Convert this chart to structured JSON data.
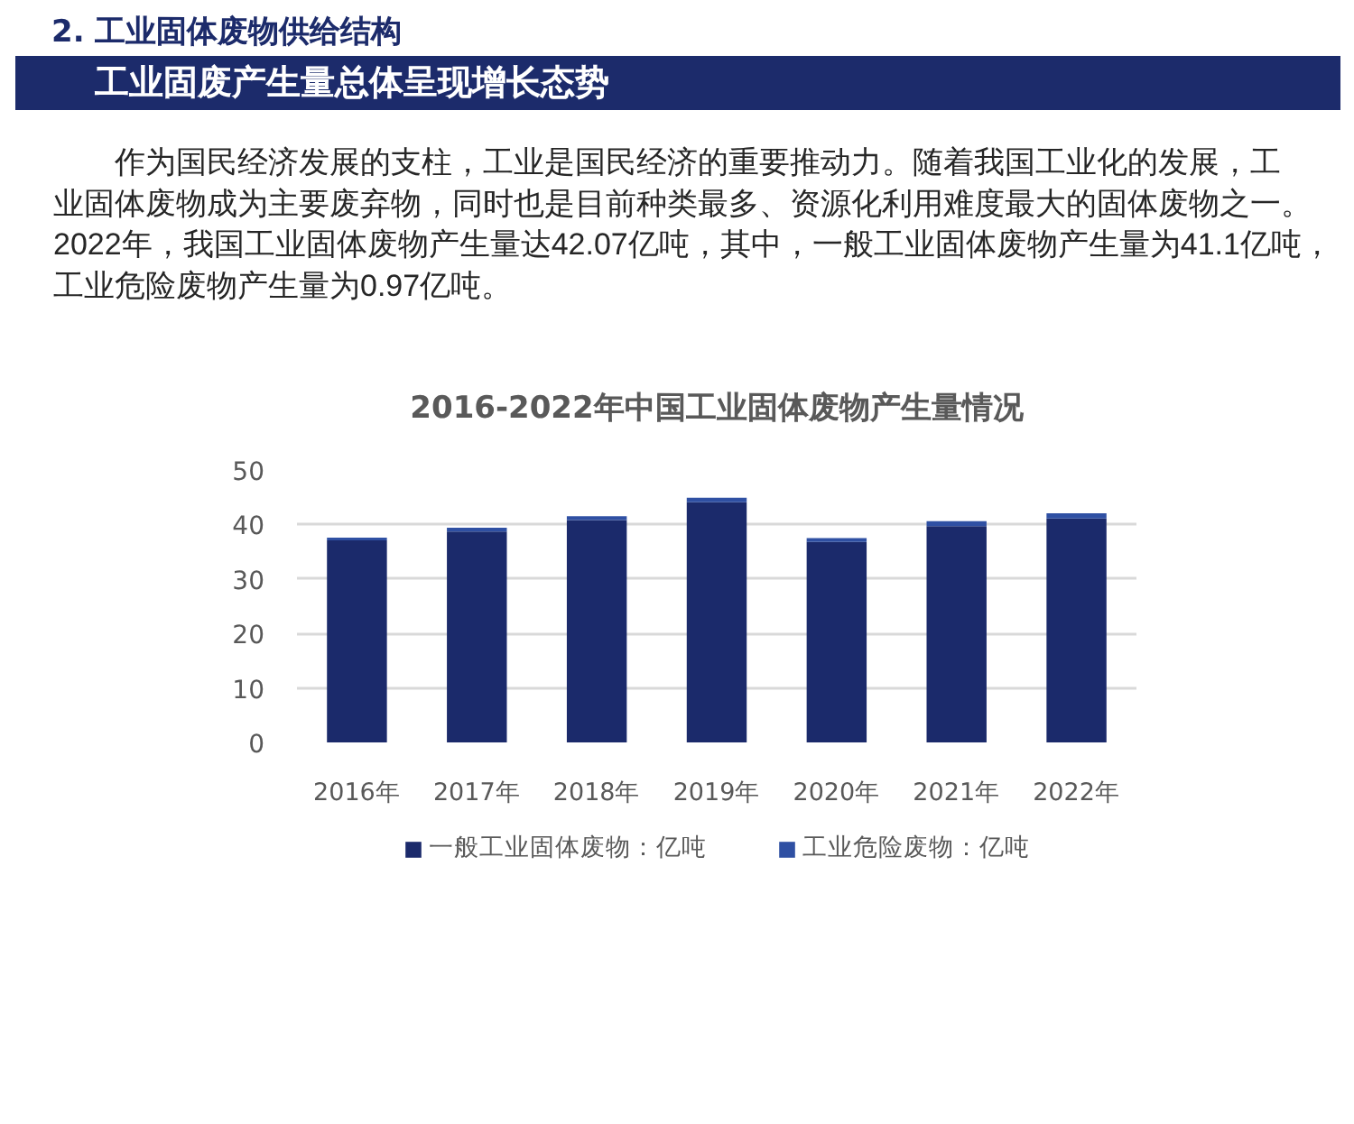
{
  "chart_data": {
    "type": "bar",
    "title": "2016-2022年中国工业固体废物产生量情况",
    "annotations": [
      "2. 工业固体废物供给结构",
      "工业固废产生量总体呈现增长态势",
      "作为国民经济发展的支柱，工业是国民经济的重要推动力。随着我国工业化的发展，工业固体废物成为主要废弃物，同时也是目前种类最多、资源化利用难度最大的固体废物之一。2022年，我国工业固体废物产生量达42.07亿吨，其中，一般工业固体废物产生量为41.1亿吨，工业危险废物产生量为0.97亿吨。"
    ],
    "categories": [
      "2016年",
      "2017年",
      "2018年",
      "2019年",
      "2020年",
      "2021年",
      "2022年"
    ],
    "series": [
      {
        "name": "一般工业固体废物：亿吨",
        "color": "#1b2a6b",
        "values": [
          37.1,
          38.7,
          40.8,
          44.1,
          36.8,
          39.7,
          41.1
        ]
      },
      {
        "name": "工业危险废物：亿吨",
        "color": "#2f50a3",
        "values": [
          0.5,
          0.7,
          0.7,
          0.8,
          0.7,
          0.9,
          0.97
        ]
      }
    ],
    "stacked": true,
    "ylim": [
      0,
      50
    ],
    "yticks": [
      0,
      10,
      20,
      30,
      40,
      50
    ],
    "grid": "y",
    "legend": "bottom"
  }
}
